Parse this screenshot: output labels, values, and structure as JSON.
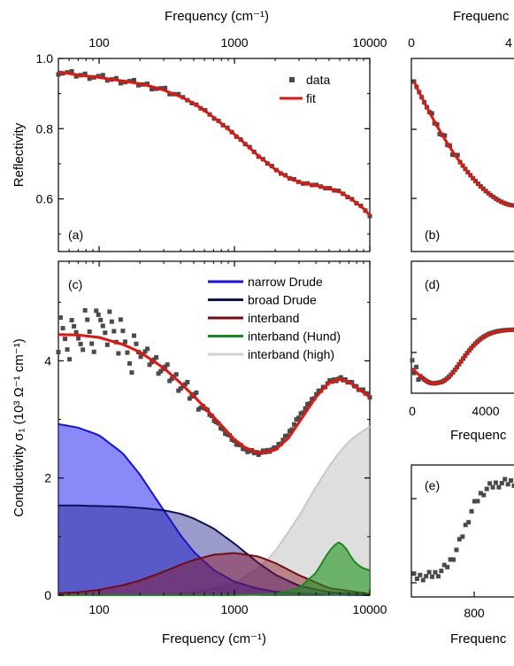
{
  "chart_data": [
    {
      "panel": "(a)",
      "type": "scatter",
      "xscale": "log",
      "xlim": [
        50,
        10000
      ],
      "ylim": [
        0.45,
        1.0
      ],
      "xlabel_top": "Frequency (cm⁻¹)",
      "ylabel": "Reflectivity",
      "xticks": [
        100,
        1000,
        10000
      ],
      "xtick_labels": [
        "100",
        "1000",
        "10000"
      ],
      "yticks": [
        0.6,
        0.8,
        1.0
      ],
      "ytick_labels": [
        "0.6",
        "0.8",
        "1.0"
      ],
      "legend": {
        "position": "top-right",
        "entries": [
          "data",
          "fit"
        ]
      },
      "series": [
        {
          "name": "data",
          "style": "markers",
          "color": "#4a4a4a",
          "x": [
            50,
            60,
            70,
            80,
            100,
            120,
            150,
            200,
            250,
            300,
            400,
            500,
            600,
            800,
            1000,
            1200,
            1500,
            2000,
            2500,
            3000,
            4000,
            5000,
            6000,
            7000,
            8000,
            9000,
            10000
          ],
          "y": [
            0.962,
            0.957,
            0.953,
            0.951,
            0.947,
            0.941,
            0.936,
            0.928,
            0.919,
            0.91,
            0.891,
            0.872,
            0.852,
            0.815,
            0.784,
            0.757,
            0.723,
            0.684,
            0.661,
            0.648,
            0.638,
            0.63,
            0.62,
            0.605,
            0.588,
            0.572,
            0.553
          ]
        },
        {
          "name": "fit",
          "style": "line",
          "color": "#e8140c",
          "x": [
            50,
            60,
            70,
            80,
            100,
            120,
            150,
            200,
            250,
            300,
            400,
            500,
            600,
            800,
            1000,
            1200,
            1500,
            2000,
            2500,
            3000,
            4000,
            5000,
            6000,
            7000,
            8000,
            9000,
            10000
          ],
          "y": [
            0.962,
            0.957,
            0.953,
            0.95,
            0.946,
            0.941,
            0.936,
            0.928,
            0.919,
            0.91,
            0.891,
            0.872,
            0.852,
            0.815,
            0.784,
            0.757,
            0.723,
            0.684,
            0.661,
            0.648,
            0.638,
            0.63,
            0.62,
            0.605,
            0.588,
            0.572,
            0.553
          ]
        }
      ]
    },
    {
      "panel": "(c)",
      "type": "area",
      "xscale": "log",
      "xlim": [
        50,
        10000
      ],
      "ylim": [
        0,
        5.7
      ],
      "xlabel": "Frequency (cm⁻¹)",
      "ylabel": "Conductivity σ₁ (10³ Ω⁻¹ cm⁻¹)",
      "xticks": [
        100,
        1000,
        10000
      ],
      "xtick_labels": [
        "100",
        "1000",
        "10000"
      ],
      "yticks": [
        0,
        2,
        4
      ],
      "ytick_labels": [
        "0",
        "2",
        "4"
      ],
      "legend": {
        "position": "top-right",
        "entries": [
          "narrow Drude",
          "broad Drude",
          "interband",
          "interband (Hund)",
          "interband (high)"
        ]
      },
      "series": [
        {
          "name": "narrow Drude",
          "color": "#1010f0",
          "x": [
            50,
            70,
            100,
            150,
            200,
            300,
            400,
            500,
            700,
            1000,
            1500,
            2000,
            3000,
            5000,
            10000
          ],
          "y": [
            2.92,
            2.86,
            2.73,
            2.42,
            2.06,
            1.45,
            1.02,
            0.74,
            0.43,
            0.23,
            0.11,
            0.06,
            0.03,
            0.01,
            0.0
          ]
        },
        {
          "name": "broad Drude",
          "color": "#101060",
          "x": [
            50,
            70,
            100,
            150,
            200,
            300,
            400,
            500,
            700,
            1000,
            1500,
            2000,
            3000,
            5000,
            10000
          ],
          "y": [
            1.53,
            1.53,
            1.52,
            1.51,
            1.49,
            1.45,
            1.39,
            1.31,
            1.14,
            0.88,
            0.55,
            0.35,
            0.16,
            0.05,
            0.01
          ]
        },
        {
          "name": "interband",
          "color": "#7a0a0a",
          "x": [
            50,
            70,
            100,
            150,
            200,
            300,
            400,
            500,
            700,
            1000,
            1500,
            2000,
            3000,
            5000,
            10000
          ],
          "y": [
            0.03,
            0.05,
            0.09,
            0.17,
            0.25,
            0.4,
            0.52,
            0.6,
            0.69,
            0.72,
            0.66,
            0.55,
            0.34,
            0.12,
            0.02
          ]
        },
        {
          "name": "interband (Hund)",
          "color": "#1a8a1a",
          "x": [
            50,
            1000,
            2000,
            3000,
            4000,
            5000,
            5800,
            6500,
            7500,
            8500,
            10000
          ],
          "y": [
            0.0,
            0.0,
            0.02,
            0.12,
            0.38,
            0.75,
            0.91,
            0.84,
            0.6,
            0.48,
            0.42
          ]
        },
        {
          "name": "interband (high)",
          "color": "#c8c8c8",
          "x": [
            50,
            300,
            500,
            1000,
            1500,
            2000,
            3000,
            4000,
            5000,
            6000,
            7000,
            8000,
            10000
          ],
          "y": [
            0.0,
            0.01,
            0.04,
            0.2,
            0.45,
            0.75,
            1.35,
            1.85,
            2.2,
            2.45,
            2.62,
            2.73,
            2.88
          ]
        },
        {
          "name": "data",
          "style": "markers",
          "color": "#4a4a4a",
          "x": [
            50,
            60,
            70,
            80,
            90,
            100,
            110,
            120,
            130,
            150,
            170,
            200,
            250,
            300,
            400,
            500,
            600,
            800,
            1000,
            1200,
            1500,
            2000,
            2500,
            3000,
            4000,
            5000,
            6000,
            7000,
            8000,
            9000,
            10000
          ],
          "y": [
            4.5,
            4.3,
            4.45,
            4.6,
            4.4,
            4.6,
            4.7,
            4.55,
            4.5,
            4.3,
            4.15,
            4.15,
            4.0,
            3.85,
            3.6,
            3.4,
            3.2,
            2.85,
            2.62,
            2.48,
            2.42,
            2.5,
            2.75,
            3.05,
            3.42,
            3.64,
            3.7,
            3.65,
            3.55,
            3.48,
            3.4
          ]
        },
        {
          "name": "fit",
          "style": "line",
          "color": "#e8140c",
          "x": [
            50,
            70,
            100,
            150,
            200,
            300,
            400,
            500,
            600,
            800,
            1000,
            1200,
            1500,
            2000,
            2500,
            3000,
            4000,
            5000,
            6000,
            7000,
            8000,
            9000,
            10000
          ],
          "y": [
            4.45,
            4.44,
            4.4,
            4.28,
            4.15,
            3.88,
            3.62,
            3.4,
            3.21,
            2.9,
            2.66,
            2.52,
            2.43,
            2.48,
            2.68,
            2.95,
            3.38,
            3.63,
            3.69,
            3.64,
            3.54,
            3.46,
            3.38
          ]
        }
      ]
    },
    {
      "panel": "(b)",
      "type": "scatter",
      "xlabel_top": "Frequenc",
      "xtick_labels": [
        "0",
        "4"
      ],
      "y_tick_marks_only": true
    },
    {
      "panel": "(d)",
      "type": "scatter",
      "xlabel": "Frequenc",
      "xtick_labels": [
        "0",
        "4000"
      ]
    },
    {
      "panel": "(e)",
      "type": "scatter",
      "xlabel": "Frequenc",
      "xtick_labels": [
        "800"
      ]
    }
  ],
  "labels": {
    "top_xlabel_left": "Frequency (cm⁻¹)",
    "top_xlabel_right": "Frequenc",
    "bottom_xlabel_left": "Frequency (cm⁻¹)",
    "mid_xlabel_right": "Frequenc",
    "bottom_xlabel_right": "Frequenc"
  }
}
